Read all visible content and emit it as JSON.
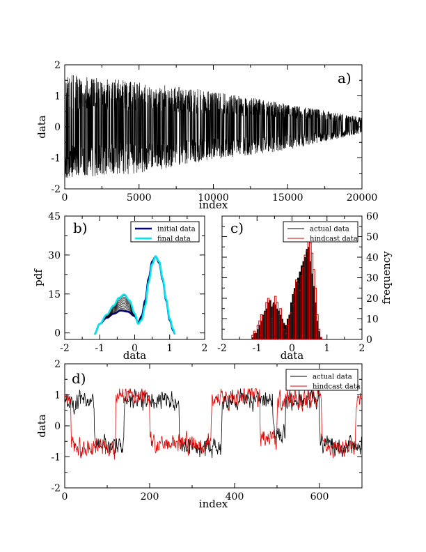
{
  "chart_data": [
    {
      "id": "a",
      "type": "line",
      "panel_label": "a)",
      "xlabel": "index",
      "ylabel": "data",
      "xlim": [
        0,
        20000
      ],
      "ylim": [
        -2,
        2
      ],
      "xticks": [
        0,
        5000,
        10000,
        15000,
        20000
      ],
      "yticks": [
        -2,
        -1,
        0,
        1,
        2
      ],
      "series": [
        {
          "name": "data",
          "color": "#000000",
          "description": "rapidly oscillating bimodal signal; amplitude decays from ~1.7 to ~0.25 across the index range",
          "envelope": {
            "x": [
              0,
              5000,
              10000,
              15000,
              20000
            ],
            "upper": [
              1.7,
              1.45,
              1.15,
              0.75,
              0.3
            ],
            "lower": [
              -1.65,
              -1.5,
              -1.05,
              -0.75,
              -0.2
            ]
          }
        }
      ]
    },
    {
      "id": "b",
      "type": "line",
      "panel_label": "b)",
      "xlabel": "data",
      "ylabel": "pdf",
      "xlim": [
        -2,
        2
      ],
      "ylim": [
        -2.5,
        45
      ],
      "xticks": [
        -2,
        -1,
        0,
        1,
        2
      ],
      "yticks": [
        0,
        15,
        30,
        45
      ],
      "legend": [
        "initial data",
        "final data"
      ],
      "series": [
        {
          "name": "initial data",
          "color": "#00008b",
          "x": [
            -1.15,
            -1.0,
            -0.8,
            -0.6,
            -0.4,
            -0.2,
            0.0,
            0.1,
            0.2,
            0.3,
            0.4,
            0.5,
            0.6,
            0.7,
            0.8,
            0.9,
            1.0,
            1.1,
            1.15
          ],
          "y": [
            -0.5,
            3.5,
            5.8,
            7.4,
            8.6,
            8.2,
            6.5,
            4.0,
            6.5,
            12.5,
            21,
            27.5,
            29.5,
            27,
            20.5,
            12.5,
            5,
            1,
            -0.5
          ]
        },
        {
          "name": "final data",
          "color": "#00e5ee",
          "x": [
            -1.15,
            -1.0,
            -0.8,
            -0.6,
            -0.45,
            -0.3,
            -0.15,
            0.0,
            0.1,
            0.2,
            0.3,
            0.4,
            0.5,
            0.6,
            0.7,
            0.8,
            0.9,
            1.0,
            1.1,
            1.15
          ],
          "y": [
            -0.5,
            3.5,
            7,
            10.5,
            13.5,
            14.8,
            12.5,
            7.5,
            3.5,
            5,
            10.5,
            19.5,
            26.5,
            29.5,
            27.5,
            21,
            13,
            5.5,
            1.5,
            -0.5
          ]
        },
        {
          "name": "intermediate curves",
          "color": "#000000",
          "count": 12
        }
      ]
    },
    {
      "id": "c",
      "type": "bar",
      "panel_label": "c)",
      "xlabel": "data",
      "ylabel": "frequency",
      "xlim": [
        -2,
        2
      ],
      "ylim": [
        0,
        60
      ],
      "xticks": [
        -2,
        -1,
        0,
        1,
        2
      ],
      "yticks": [
        0,
        10,
        20,
        30,
        40,
        50,
        60
      ],
      "legend": [
        "actual data",
        "hindcast data"
      ],
      "bin_start": -1.25,
      "bin_width": 0.05,
      "series": [
        {
          "name": "actual data",
          "color": "#000000",
          "values": [
            0,
            0,
            1,
            3,
            3,
            5,
            7,
            9,
            12,
            14,
            15,
            18,
            19,
            16,
            18,
            17,
            15,
            14,
            12,
            10,
            8,
            7,
            10,
            12,
            18,
            22,
            25,
            28,
            30,
            33,
            36,
            38,
            40,
            44,
            45,
            38,
            32,
            26,
            18,
            9,
            4,
            1
          ]
        },
        {
          "name": "hindcast data",
          "color": "#cc0000",
          "values": [
            0,
            0,
            2,
            4,
            3,
            7,
            9,
            12,
            11,
            13,
            18,
            20,
            19,
            10,
            17,
            21,
            18,
            12,
            15,
            8,
            5,
            3,
            7,
            10,
            13,
            17,
            23,
            29,
            27,
            24,
            31,
            35,
            41,
            43,
            50,
            47,
            42,
            34,
            25,
            12,
            5,
            1
          ]
        }
      ]
    },
    {
      "id": "d",
      "type": "line",
      "panel_label": "d)",
      "xlabel": "index",
      "ylabel": "data",
      "xlim": [
        0,
        700
      ],
      "ylim": [
        -2,
        2
      ],
      "xticks": [
        0,
        200,
        400,
        600
      ],
      "yticks": [
        -2,
        -1,
        0,
        1,
        2
      ],
      "legend": [
        "actual data",
        "hindcast data"
      ],
      "series": [
        {
          "name": "actual data",
          "color": "#000000",
          "n_points": 700,
          "regimes": [
            [
              0,
              70,
              0.8
            ],
            [
              70,
              140,
              -0.6
            ],
            [
              140,
              270,
              0.85
            ],
            [
              270,
              370,
              -0.7
            ],
            [
              370,
              490,
              0.85
            ],
            [
              490,
              520,
              -0.3
            ],
            [
              520,
              600,
              0.9
            ],
            [
              600,
              700,
              -0.6
            ]
          ]
        },
        {
          "name": "hindcast data",
          "color": "#dd0000",
          "n_points": 700,
          "regimes": [
            [
              0,
              15,
              0.9
            ],
            [
              15,
              120,
              -0.75
            ],
            [
              120,
              200,
              0.95
            ],
            [
              200,
              345,
              -0.55
            ],
            [
              345,
              460,
              0.95
            ],
            [
              460,
              500,
              -0.4
            ],
            [
              500,
              605,
              0.85
            ],
            [
              605,
              685,
              -0.75
            ],
            [
              685,
              700,
              0.9
            ]
          ]
        }
      ]
    }
  ]
}
